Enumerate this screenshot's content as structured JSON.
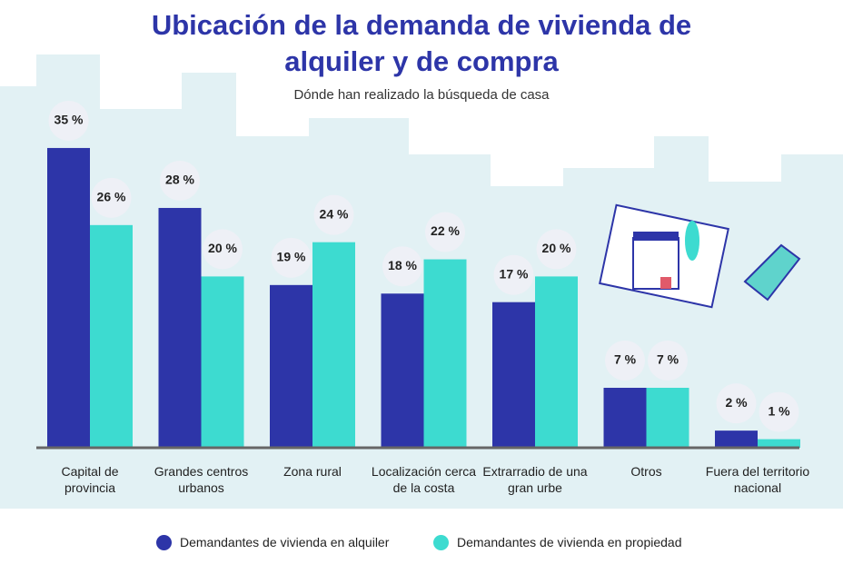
{
  "chart_data": {
    "type": "bar",
    "title": "Ubicación de la demanda de vivienda de alquiler y de compra",
    "subtitle": "Dónde han realizado la búsqueda de casa",
    "categories": [
      "Capital de provincia",
      "Grandes centros urbanos",
      "Zona rural",
      "Localización cerca de la costa",
      "Extrarradio de una gran urbe",
      "Otros",
      "Fuera del territorio nacional"
    ],
    "series": [
      {
        "name": "Demandantes de vivienda en alquiler",
        "color": "#2d35a8",
        "values": [
          35,
          28,
          19,
          18,
          17,
          7,
          2
        ],
        "value_labels": [
          "35 %",
          "28 %",
          "19 %",
          "18 %",
          "17 %",
          "7 %",
          "2 %"
        ]
      },
      {
        "name": "Demandantes de vivienda en propiedad",
        "color": "#3ddbd0",
        "values": [
          26,
          20,
          24,
          22,
          20,
          7,
          1
        ],
        "value_labels": [
          "26 %",
          "20 %",
          "24 %",
          "22 %",
          "20 %",
          "7 %",
          "1 %"
        ]
      }
    ]
  }
}
